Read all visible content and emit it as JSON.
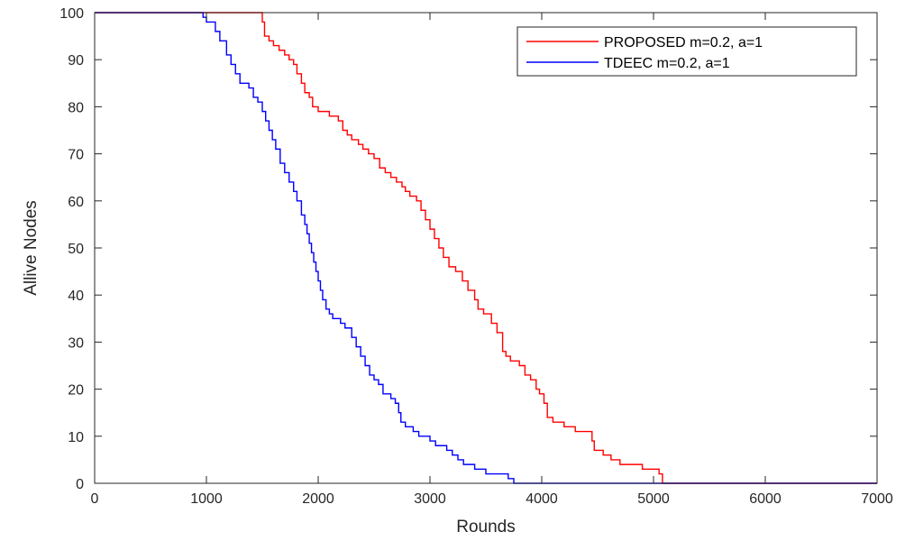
{
  "chart_data": {
    "type": "line",
    "xlabel": "Rounds",
    "ylabel": "Allive Nodes",
    "xlim": [
      0,
      7000
    ],
    "ylim": [
      0,
      100
    ],
    "xticks": [
      "0",
      "1000",
      "2000",
      "3000",
      "4000",
      "5000",
      "6000",
      "7000"
    ],
    "yticks": [
      "0",
      "10",
      "20",
      "30",
      "40",
      "50",
      "60",
      "70",
      "80",
      "90",
      "100"
    ],
    "grid": false,
    "legend_position": "top-right",
    "series": [
      {
        "name": "PROPOSED  m=0.2, a=1",
        "color": "#ff0000",
        "points": [
          [
            0,
            100
          ],
          [
            1480,
            100
          ],
          [
            1500,
            98
          ],
          [
            1520,
            95
          ],
          [
            1560,
            94
          ],
          [
            1600,
            93
          ],
          [
            1650,
            92
          ],
          [
            1700,
            91
          ],
          [
            1740,
            90
          ],
          [
            1780,
            89
          ],
          [
            1810,
            87
          ],
          [
            1850,
            85
          ],
          [
            1880,
            83
          ],
          [
            1920,
            82
          ],
          [
            1950,
            80
          ],
          [
            2000,
            79
          ],
          [
            2100,
            78
          ],
          [
            2180,
            77
          ],
          [
            2220,
            75
          ],
          [
            2260,
            74
          ],
          [
            2300,
            73
          ],
          [
            2360,
            72
          ],
          [
            2400,
            71
          ],
          [
            2450,
            70
          ],
          [
            2500,
            69
          ],
          [
            2550,
            67
          ],
          [
            2600,
            66
          ],
          [
            2650,
            65
          ],
          [
            2700,
            64
          ],
          [
            2750,
            63
          ],
          [
            2780,
            62
          ],
          [
            2820,
            61
          ],
          [
            2880,
            60
          ],
          [
            2920,
            58
          ],
          [
            2960,
            56
          ],
          [
            3000,
            54
          ],
          [
            3040,
            52
          ],
          [
            3080,
            50
          ],
          [
            3120,
            48
          ],
          [
            3170,
            46
          ],
          [
            3230,
            45
          ],
          [
            3290,
            43
          ],
          [
            3340,
            41
          ],
          [
            3400,
            39
          ],
          [
            3430,
            37
          ],
          [
            3480,
            36
          ],
          [
            3550,
            34
          ],
          [
            3600,
            32
          ],
          [
            3650,
            28
          ],
          [
            3680,
            27
          ],
          [
            3720,
            26
          ],
          [
            3800,
            25
          ],
          [
            3850,
            23
          ],
          [
            3900,
            22
          ],
          [
            3950,
            20
          ],
          [
            3980,
            19
          ],
          [
            4020,
            17
          ],
          [
            4050,
            14
          ],
          [
            4100,
            13
          ],
          [
            4200,
            12
          ],
          [
            4300,
            11
          ],
          [
            4450,
            9
          ],
          [
            4470,
            7
          ],
          [
            4550,
            6
          ],
          [
            4620,
            5
          ],
          [
            4700,
            4
          ],
          [
            4900,
            3
          ],
          [
            5050,
            2
          ],
          [
            5080,
            0
          ],
          [
            7000,
            0
          ]
        ]
      },
      {
        "name": "TDEEC  m=0.2, a=1",
        "color": "#0000ff",
        "points": [
          [
            0,
            100
          ],
          [
            950,
            100
          ],
          [
            970,
            99
          ],
          [
            1000,
            98
          ],
          [
            1080,
            96
          ],
          [
            1120,
            94
          ],
          [
            1180,
            91
          ],
          [
            1220,
            89
          ],
          [
            1260,
            87
          ],
          [
            1300,
            85
          ],
          [
            1380,
            84
          ],
          [
            1420,
            82
          ],
          [
            1460,
            81
          ],
          [
            1500,
            79
          ],
          [
            1530,
            77
          ],
          [
            1560,
            75
          ],
          [
            1590,
            73
          ],
          [
            1620,
            71
          ],
          [
            1660,
            68
          ],
          [
            1700,
            66
          ],
          [
            1740,
            64
          ],
          [
            1780,
            62
          ],
          [
            1810,
            60
          ],
          [
            1850,
            57
          ],
          [
            1880,
            55
          ],
          [
            1900,
            53
          ],
          [
            1920,
            51
          ],
          [
            1940,
            49
          ],
          [
            1960,
            47
          ],
          [
            1980,
            45
          ],
          [
            2000,
            43
          ],
          [
            2020,
            41
          ],
          [
            2040,
            39
          ],
          [
            2070,
            37
          ],
          [
            2100,
            36
          ],
          [
            2130,
            35
          ],
          [
            2200,
            34
          ],
          [
            2240,
            33
          ],
          [
            2300,
            31
          ],
          [
            2340,
            29
          ],
          [
            2380,
            27
          ],
          [
            2420,
            25
          ],
          [
            2460,
            23
          ],
          [
            2500,
            22
          ],
          [
            2540,
            21
          ],
          [
            2580,
            19
          ],
          [
            2650,
            18
          ],
          [
            2690,
            17
          ],
          [
            2720,
            15
          ],
          [
            2740,
            13
          ],
          [
            2780,
            12
          ],
          [
            2850,
            11
          ],
          [
            2900,
            10
          ],
          [
            3000,
            9
          ],
          [
            3050,
            8
          ],
          [
            3150,
            7
          ],
          [
            3200,
            6
          ],
          [
            3250,
            5
          ],
          [
            3300,
            4
          ],
          [
            3400,
            3
          ],
          [
            3500,
            2
          ],
          [
            3700,
            1
          ],
          [
            3750,
            0
          ],
          [
            7000,
            0
          ]
        ]
      }
    ]
  }
}
